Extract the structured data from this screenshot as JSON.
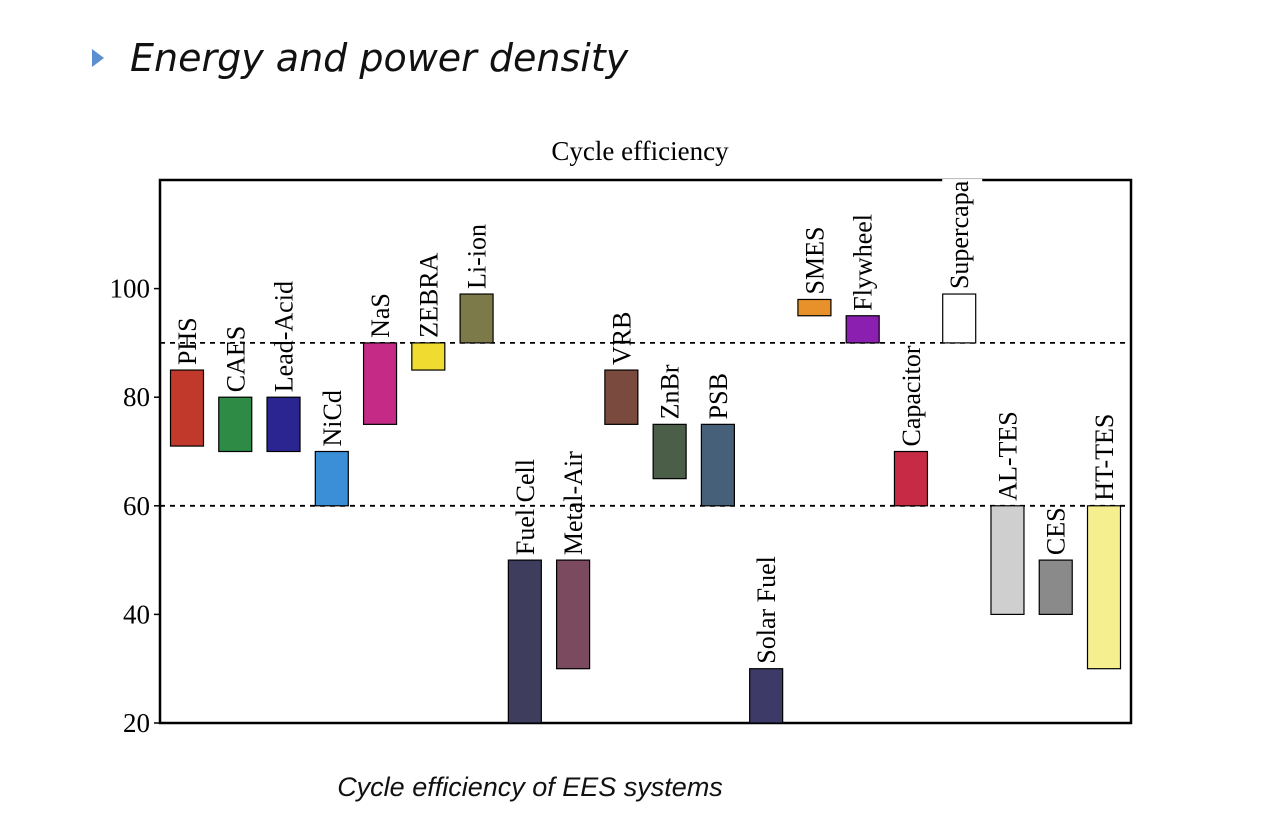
{
  "slide": {
    "title": "Energy and power density",
    "caption": "Cycle efficiency of EES systems"
  },
  "chart_data": {
    "type": "bar",
    "title": "Cycle efficiency",
    "xlabel": "",
    "ylabel": "",
    "ylim": [
      20,
      120
    ],
    "yticks": [
      20,
      40,
      60,
      80,
      100
    ],
    "reference_lines": [
      60,
      90
    ],
    "grid": false,
    "bars": [
      {
        "label": "PHS",
        "min": 71,
        "max": 85,
        "color": "#c0392b"
      },
      {
        "label": "CAES",
        "min": 70,
        "max": 80,
        "color": "#2e8b46"
      },
      {
        "label": "Lead-Acid",
        "min": 70,
        "max": 80,
        "color": "#2a2590"
      },
      {
        "label": "NiCd",
        "min": 60,
        "max": 70,
        "color": "#3a8fd6"
      },
      {
        "label": "NaS",
        "min": 75,
        "max": 90,
        "color": "#c42a86"
      },
      {
        "label": "ZEBRA",
        "min": 85,
        "max": 90,
        "color": "#f0dc30"
      },
      {
        "label": "Li-ion",
        "min": 90,
        "max": 99,
        "color": "#7d7a4a"
      },
      {
        "label": "Fuel Cell",
        "min": 20,
        "max": 50,
        "color": "#3e3d5e"
      },
      {
        "label": "Metal-Air",
        "min": 30,
        "max": 50,
        "color": "#7b4a5e"
      },
      {
        "label": "VRB",
        "min": 75,
        "max": 85,
        "color": "#7a4a3e"
      },
      {
        "label": "ZnBr",
        "min": 65,
        "max": 75,
        "color": "#4a5e48"
      },
      {
        "label": "PSB",
        "min": 60,
        "max": 75,
        "color": "#46607a"
      },
      {
        "label": "Solar Fuel",
        "min": 20,
        "max": 30,
        "color": "#3e3a68"
      },
      {
        "label": "SMES",
        "min": 95,
        "max": 98,
        "color": "#e8902a"
      },
      {
        "label": "Flywheel",
        "min": 90,
        "max": 95,
        "color": "#8a1fb0"
      },
      {
        "label": "Capacitor",
        "min": 60,
        "max": 70,
        "color": "#c62a44"
      },
      {
        "label": "Supercapa",
        "min": 90,
        "max": 99,
        "color": "#ffffff"
      },
      {
        "label": "AL-TES",
        "min": 40,
        "max": 60,
        "color": "#cfcfcf"
      },
      {
        "label": "CES",
        "min": 40,
        "max": 50,
        "color": "#8a8a8a"
      },
      {
        "label": "HT-TES",
        "min": 30,
        "max": 60,
        "color": "#f5ef90"
      }
    ]
  }
}
